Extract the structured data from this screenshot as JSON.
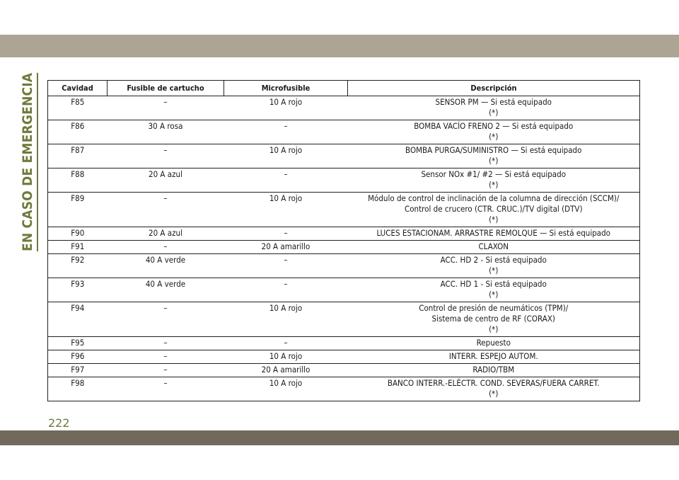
{
  "side_title": "EN CASO DE EMERGENCIA",
  "page_number": "222",
  "table": {
    "headers": [
      "Cavidad",
      "Fusible de cartucho",
      "Microfusible",
      "Descripción"
    ],
    "rows": [
      {
        "cavity": "F85",
        "cartridge": "–",
        "micro": "10 A rojo",
        "desc": [
          "SENSOR PM — Si está equipado",
          "(*)"
        ]
      },
      {
        "cavity": "F86",
        "cartridge": "30 A rosa",
        "micro": "–",
        "desc": [
          "BOMBA VACÍO FRENO 2 — Si está equipado",
          "(*)"
        ]
      },
      {
        "cavity": "F87",
        "cartridge": "–",
        "micro": "10 A rojo",
        "desc": [
          "BOMBA PURGA/SUMINISTRO — Si está equipado",
          "(*)"
        ]
      },
      {
        "cavity": "F88",
        "cartridge": "20 A azul",
        "micro": "–",
        "desc": [
          "Sensor NOx #1/ #2 — Si está equipado",
          "(*)"
        ]
      },
      {
        "cavity": "F89",
        "cartridge": "–",
        "micro": "10 A rojo",
        "desc": [
          "Módulo de control de inclinación de la columna de dirección (SCCM)/",
          "Control de crucero (CTR. CRUC.)/TV digital (DTV)",
          "(*)"
        ]
      },
      {
        "cavity": "F90",
        "cartridge": "20 A azul",
        "micro": "–",
        "desc": [
          "LUCES ESTACIONAM. ARRASTRE REMOLQUE — Si está equipado"
        ]
      },
      {
        "cavity": "F91",
        "cartridge": "–",
        "micro": "20 A amarillo",
        "desc": [
          "CLAXON"
        ]
      },
      {
        "cavity": "F92",
        "cartridge": "40 A verde",
        "micro": "–",
        "desc": [
          "ACC. HD 2 - Si está equipado",
          "(*)"
        ]
      },
      {
        "cavity": "F93",
        "cartridge": "40 A verde",
        "micro": "–",
        "desc": [
          "ACC. HD 1 - Si está equipado",
          "(*)"
        ]
      },
      {
        "cavity": "F94",
        "cartridge": "–",
        "micro": "10 A rojo",
        "desc": [
          "Control de presión de neumáticos (TPM)/",
          "Sistema de centro de RF (CORAX)",
          "(*)"
        ]
      },
      {
        "cavity": "F95",
        "cartridge": "–",
        "micro": "–",
        "desc": [
          "Repuesto"
        ]
      },
      {
        "cavity": "F96",
        "cartridge": "–",
        "micro": "10 A rojo",
        "desc": [
          "INTERR. ESPEJO AUTOM."
        ]
      },
      {
        "cavity": "F97",
        "cartridge": "–",
        "micro": "20 A amarillo",
        "desc": [
          "RADIO/TBM"
        ]
      },
      {
        "cavity": "F98",
        "cartridge": "–",
        "micro": "10 A rojo",
        "desc": [
          "BANCO INTERR.-ELÉCTR. COND. SEVERAS/FUERA CARRET.",
          "(*)"
        ]
      }
    ]
  },
  "colors": {
    "top_band": "#ada593",
    "bottom_band": "#716a5c",
    "accent_green": "#6e7a3c"
  }
}
